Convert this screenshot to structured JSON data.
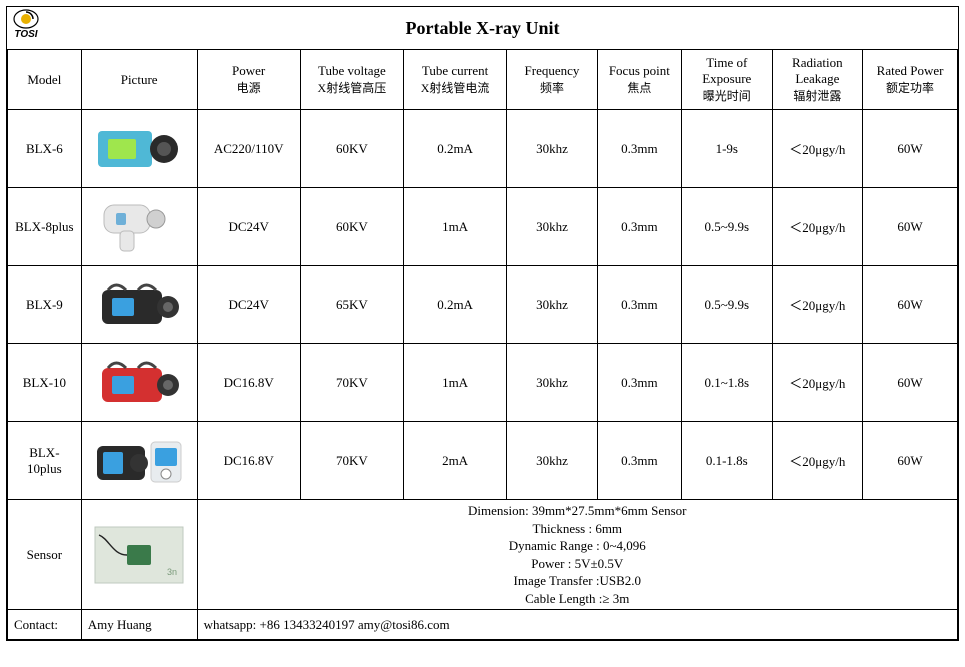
{
  "title": "Portable X-ray Unit",
  "logo_text": "TOSI",
  "columns": [
    {
      "main": "Model",
      "sub": ""
    },
    {
      "main": "Picture",
      "sub": ""
    },
    {
      "main": "Power",
      "sub": "电源"
    },
    {
      "main": "Tube voltage",
      "sub": "X射线管高压"
    },
    {
      "main": "Tube current",
      "sub": "X射线管电流"
    },
    {
      "main": "Frequency",
      "sub": "频率"
    },
    {
      "main": "Focus point",
      "sub": "焦点"
    },
    {
      "main": "Time of Exposure",
      "sub": "曝光时间"
    },
    {
      "main": "Radiation Leakage",
      "sub": "辐射泄露"
    },
    {
      "main": "Rated Power",
      "sub": "额定功率"
    }
  ],
  "rows": [
    {
      "model": "BLX-6",
      "power": "AC220/110V",
      "tube_voltage": "60KV",
      "tube_current": "0.2mA",
      "frequency": "30khz",
      "focus_point": "0.3mm",
      "exposure": "1-9s",
      "leakage": "＜20μgy/h",
      "rated_power": "60W",
      "pic_color": "#4fb8d6",
      "pic_type": "box"
    },
    {
      "model": "BLX-8plus",
      "power": "DC24V",
      "tube_voltage": "60KV",
      "tube_current": "1mA",
      "frequency": "30khz",
      "focus_point": "0.3mm",
      "exposure": "0.5~9.9s",
      "leakage": "＜20μgy/h",
      "rated_power": "60W",
      "pic_color": "#e8e8e8",
      "pic_type": "gun"
    },
    {
      "model": "BLX-9",
      "power": "DC24V",
      "tube_voltage": "65KV",
      "tube_current": "0.2mA",
      "frequency": "30khz",
      "focus_point": "0.3mm",
      "exposure": "0.5~9.9s",
      "leakage": "＜20μgy/h",
      "rated_power": "60W",
      "pic_color": "#2a2a2a",
      "pic_type": "camera"
    },
    {
      "model": "BLX-10",
      "power": "DC16.8V",
      "tube_voltage": "70KV",
      "tube_current": "1mA",
      "frequency": "30khz",
      "focus_point": "0.3mm",
      "exposure": "0.1~1.8s",
      "leakage": "＜20μgy/h",
      "rated_power": "60W",
      "pic_color": "#d43030",
      "pic_type": "camera"
    },
    {
      "model": "BLX-10plus",
      "power": "DC16.8V",
      "tube_voltage": "70KV",
      "tube_current": "2mA",
      "frequency": "30khz",
      "focus_point": "0.3mm",
      "exposure": "0.1-1.8s",
      "leakage": "＜20μgy/h",
      "rated_power": "60W",
      "pic_color": "#2a2a2a",
      "pic_type": "camera2"
    }
  ],
  "sensor": {
    "label": "Sensor",
    "lines": [
      "Dimension: 39mm*27.5mm*6mm Sensor",
      "Thickness : 6mm",
      "Dynamic Range : 0~4,096",
      "Power : 5V±0.5V",
      "Image Transfer :USB2.0",
      "Cable Length :≥ 3m"
    ],
    "pic_bg": "#dfe6dc",
    "pic_chip": "#3a7a4a"
  },
  "contact": {
    "label": "Contact:",
    "name": "Amy Huang",
    "rest": "whatsapp: +86 13433240197        amy@tosi86.com"
  }
}
